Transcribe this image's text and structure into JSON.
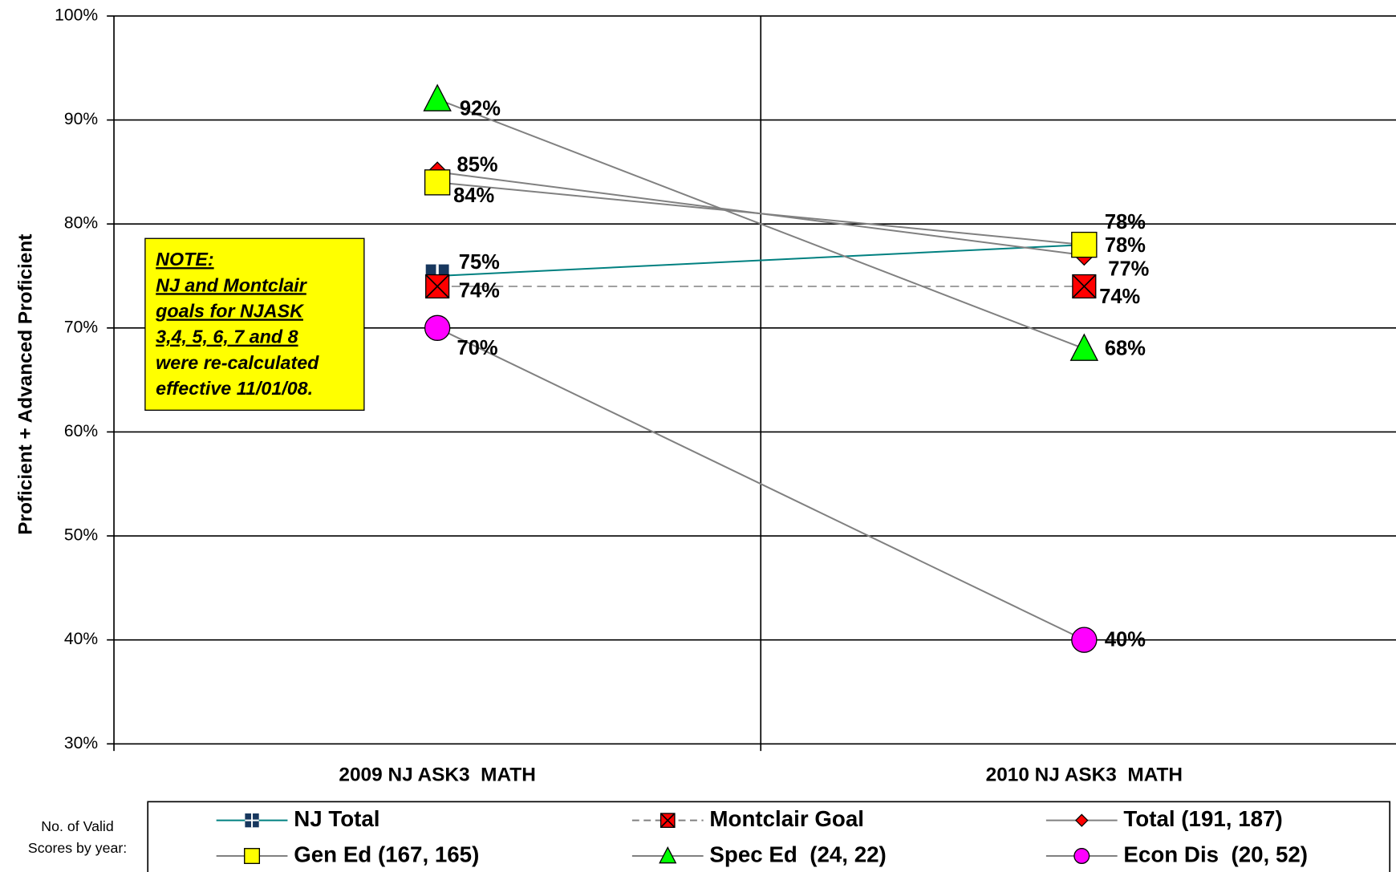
{
  "chart_data": {
    "type": "line",
    "y_label": "Proficient + Advanced Proficient",
    "categories": [
      "2009 NJ ASK3  MATH",
      "2010 NJ ASK3  MATH"
    ],
    "ylim": [
      30,
      100
    ],
    "yticks": [
      {
        "value": 30,
        "label": "30%"
      },
      {
        "value": 40,
        "label": "40%"
      },
      {
        "value": 50,
        "label": "50%"
      },
      {
        "value": 60,
        "label": "60%"
      },
      {
        "value": 70,
        "label": "70%"
      },
      {
        "value": 80,
        "label": "80%"
      },
      {
        "value": 90,
        "label": "90%"
      },
      {
        "value": 100,
        "label": "100%"
      }
    ],
    "grid": true,
    "series": [
      {
        "name": "NJ Total",
        "color": "#008080",
        "marker": "square-cross",
        "marker_color": "#17375e",
        "values": [
          75,
          78
        ],
        "value_labels": [
          "75%",
          "78%"
        ]
      },
      {
        "name": "Montclair Goal",
        "color": "#808080",
        "dashed": true,
        "marker": "square-x",
        "marker_color": "#ff0000",
        "values": [
          74,
          74
        ],
        "value_labels": [
          "74%",
          "74%"
        ]
      },
      {
        "name": "Total (191, 187)",
        "color": "#808080",
        "marker": "diamond",
        "marker_color": "#ff0000",
        "values": [
          85,
          77
        ],
        "value_labels": [
          "85%",
          "77%"
        ]
      },
      {
        "name": "Gen Ed (167, 165)",
        "color": "#808080",
        "marker": "square",
        "marker_color": "#ffff00",
        "values": [
          84,
          78
        ],
        "value_labels": [
          "84%",
          "78%"
        ]
      },
      {
        "name": "Spec Ed  (24, 22)",
        "color": "#808080",
        "marker": "triangle",
        "marker_color": "#00ff00",
        "values": [
          92,
          68
        ],
        "value_labels": [
          "92%",
          "68%"
        ]
      },
      {
        "name": "Econ Dis  (20, 52)",
        "color": "#808080",
        "marker": "circle",
        "marker_color": "#ff00ff",
        "values": [
          70,
          40
        ],
        "value_labels": [
          "70%",
          "40%"
        ]
      }
    ],
    "annotation": {
      "lines": [
        "NOTE:",
        "NJ and Montclair",
        "goals for NJASK",
        "3,4, 5, 6, 7 and 8",
        "were re-calculated",
        "effective 11/01/08."
      ],
      "color": "#ffff00"
    },
    "legend_note": [
      "No. of Valid",
      "Scores by year:"
    ]
  }
}
